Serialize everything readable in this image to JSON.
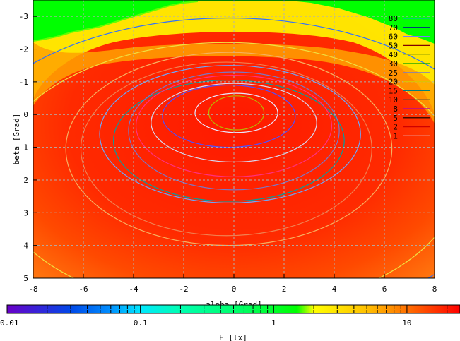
{
  "chart_data": {
    "type": "heatmap",
    "title": "",
    "xlabel": "alpha [Grad]",
    "ylabel": "beta [Grad]",
    "xlim": [
      -8,
      8
    ],
    "ylim": [
      -3.5,
      5
    ],
    "y_axis_inverted": true,
    "grid": true,
    "x_ticks": [
      -8,
      -6,
      -4,
      -2,
      0,
      2,
      4,
      6,
      8
    ],
    "y_ticks": [
      -3,
      -2,
      -1,
      0,
      1,
      2,
      3,
      4,
      5
    ],
    "x_tick_labels": [
      "-8",
      "-6",
      "-4",
      "-2",
      "0",
      "2",
      "4",
      "6",
      "8"
    ],
    "y_tick_labels": [
      "-3",
      "-2",
      "-1",
      "0",
      "1",
      "2",
      "3",
      "4",
      "5"
    ],
    "contour_levels": [
      80,
      70,
      60,
      50,
      40,
      30,
      25,
      20,
      15,
      10,
      8,
      5,
      2,
      1
    ],
    "contour_level_labels": [
      "80",
      "70",
      "60",
      "50",
      "40",
      "30",
      "25",
      "20",
      "15",
      "10",
      "8",
      "5",
      "2",
      "1"
    ],
    "contour_colors": [
      "#00b8b8",
      "#0000a0",
      "#7878ff",
      "#800000",
      "#b8b800",
      "#00a000",
      "#7878c8",
      "#e0c000",
      "#008080",
      "#404040",
      "#b000b0",
      "#000000",
      "#d00000",
      "#e0e0ff"
    ],
    "contour_ellipses": [
      {
        "level": 1,
        "cx": -0.2,
        "cy": 1.75,
        "rx": 11.0,
        "ry": 4.7,
        "color": "#3070ff"
      },
      {
        "level": 2,
        "cx": -0.3,
        "cy": 1.9,
        "rx": 9.3,
        "ry": 4.1,
        "color": "#f0e040"
      },
      {
        "level": 5,
        "cx": -0.2,
        "cy": 1.05,
        "rx": 6.5,
        "ry": 2.95,
        "color": "#f6b060"
      },
      {
        "level": 8,
        "cx": -0.3,
        "cy": 1.05,
        "rx": 5.8,
        "ry": 2.65,
        "color": "#f08050"
      },
      {
        "level": 15,
        "cx": -0.15,
        "cy": 0.6,
        "rx": 5.2,
        "ry": 2.1,
        "color": "#6aa8ff"
      },
      {
        "level": 20,
        "cx": -0.2,
        "cy": 0.8,
        "rx": 4.6,
        "ry": 1.85,
        "color": "#00a0a0"
      },
      {
        "level": 25,
        "cx": 0.0,
        "cy": 0.5,
        "rx": 4.2,
        "ry": 1.8,
        "color": "#7878c8"
      },
      {
        "level": 30,
        "cx": 0.0,
        "cy": 0.35,
        "rx": 3.9,
        "ry": 1.55,
        "color": "#ff3080"
      },
      {
        "level": 40,
        "cx": 0.0,
        "cy": 0.25,
        "rx": 3.3,
        "ry": 1.2,
        "color": "#d8d8f0"
      },
      {
        "level": 60,
        "cx": -0.2,
        "cy": 0.05,
        "rx": 2.65,
        "ry": 0.95,
        "color": "#5050ff"
      },
      {
        "level": 70,
        "cx": 0.1,
        "cy": -0.05,
        "rx": 1.65,
        "ry": 0.6,
        "color": "#e8e8ff"
      },
      {
        "level": 80,
        "cx": 0.1,
        "cy": -0.05,
        "rx": 1.1,
        "ry": 0.52,
        "color": "#b8b800"
      }
    ],
    "colorbar": {
      "label": "E [lx]",
      "scale": "log",
      "range": [
        0.01,
        25
      ],
      "tick_labels": [
        "0.01",
        "0.1",
        "1",
        "10"
      ],
      "tick_values": [
        0.01,
        0.1,
        1,
        10
      ],
      "color_stops": [
        {
          "value": 0.01,
          "color": "#6a00c8"
        },
        {
          "value": 0.03,
          "color": "#0048e8"
        },
        {
          "value": 0.06,
          "color": "#0090ff"
        },
        {
          "value": 0.1,
          "color": "#00e8ff"
        },
        {
          "value": 0.2,
          "color": "#00ffb0"
        },
        {
          "value": 0.6,
          "color": "#00ff60"
        },
        {
          "value": 1.5,
          "color": "#00ff00"
        },
        {
          "value": 2.0,
          "color": "#ffff00"
        },
        {
          "value": 5.0,
          "color": "#ffc000"
        },
        {
          "value": 10,
          "color": "#ff7000"
        },
        {
          "value": 25,
          "color": "#ff0000"
        }
      ]
    },
    "field_colors": {
      "peak": "#ff1a00",
      "mid": "#ff5000",
      "yellow": "#ffff00",
      "green": "#00ff00"
    }
  }
}
